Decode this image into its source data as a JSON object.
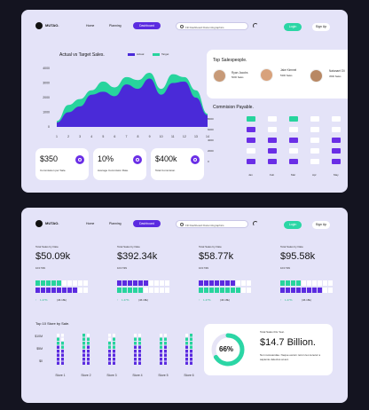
{
  "brand": "MUTAO.",
  "nav": {
    "home": "Home",
    "planning": "Planning",
    "dashboard": "Dashboard",
    "search_placeholder": "Fill Dashboard Data infographics",
    "login": "Login",
    "signup": "Sign Up"
  },
  "chart1": {
    "title": "Actual vs Target Sales.",
    "legend_actual": "Actual",
    "legend_target": "Target",
    "y_ticks": [
      "4000",
      "3000",
      "2000",
      "1000",
      "0"
    ],
    "x_ticks": [
      "1",
      "2",
      "3",
      "4",
      "5",
      "6",
      "7",
      "8",
      "9",
      "10",
      "11",
      "12",
      "13",
      "14"
    ]
  },
  "chart_data": [
    {
      "type": "area",
      "title": "Actual vs Target Sales.",
      "x": [
        1,
        2,
        3,
        4,
        5,
        6,
        7,
        8,
        9,
        10,
        11,
        12,
        13,
        14
      ],
      "ylim": [
        0,
        4000
      ],
      "series": [
        {
          "name": "Target",
          "values": [
            400,
            1500,
            1900,
            2500,
            3100,
            2700,
            3400,
            3200,
            3700,
            2600,
            3600,
            3400,
            2500,
            900
          ]
        },
        {
          "name": "Actual",
          "values": [
            300,
            1000,
            1400,
            2200,
            2400,
            2100,
            2900,
            2600,
            3300,
            2200,
            3000,
            3100,
            2000,
            800
          ]
        }
      ],
      "colors": {
        "Actual": "#4a2ad8",
        "Target": "#27d49d"
      }
    },
    {
      "type": "heatmap",
      "title": "Commision Payable.",
      "categories": [
        "Jan",
        "Feb",
        "Mar",
        "Apr",
        "May"
      ],
      "y_ticks": [
        "8000",
        "6000",
        "4000",
        "2000",
        "0"
      ]
    }
  ],
  "stats1": [
    {
      "value": "$350",
      "label": "Commission per Sale."
    },
    {
      "value": "10%",
      "label": "Average Commision Rate."
    },
    {
      "value": "$400k",
      "label": "Total Commision."
    }
  ],
  "salespeople": {
    "title": "Top Salespeople.",
    "people": [
      {
        "name": "Ryan Jacobs",
        "sales": "5000 Sales"
      },
      {
        "name": "Jake Kimmel",
        "sales": "5300 Sales"
      },
      {
        "name": "Natanael Oli",
        "sales": "4500 Sales"
      }
    ]
  },
  "commission": {
    "title": "Commision Payable.",
    "months": [
      "Jan",
      "Feb",
      "Mar",
      "Apr",
      "May"
    ],
    "y_ticks": [
      "8000",
      "6000",
      "4000",
      "2000",
      "0"
    ]
  },
  "sales": [
    {
      "label": "Total Sales by Date",
      "value": "$50.09k",
      "date": "10/17/99",
      "growth": "1.47%",
      "sub": "(46.18k)"
    },
    {
      "label": "Total Sales by Date",
      "value": "$392.34k",
      "date": "10/17/99",
      "growth": "1.47%",
      "sub": "(46.18k)"
    },
    {
      "label": "Total Sales by Date",
      "value": "$58.77k",
      "date": "10/17/99",
      "growth": "1.47%",
      "sub": "(46.18k)"
    },
    {
      "label": "Total Sales by Date",
      "value": "$95.58k",
      "date": "10/17/99",
      "growth": "1.47%",
      "sub": "(46.18k)"
    }
  ],
  "stores": {
    "title": "Top 10 Store by Sale.",
    "y_ticks": [
      "$10M",
      "$5M",
      "$0"
    ],
    "labels": [
      "Store 1",
      "Store 2",
      "Store 3",
      "Store 4",
      "Store 5",
      "Store 6"
    ]
  },
  "total": {
    "title": "Total Sales this Year.",
    "percent": "66%",
    "value": "$14.7 Billion.",
    "desc": "Non recusandae. Neque earum rerum leo tenetur a sapiente delectus at aut."
  }
}
